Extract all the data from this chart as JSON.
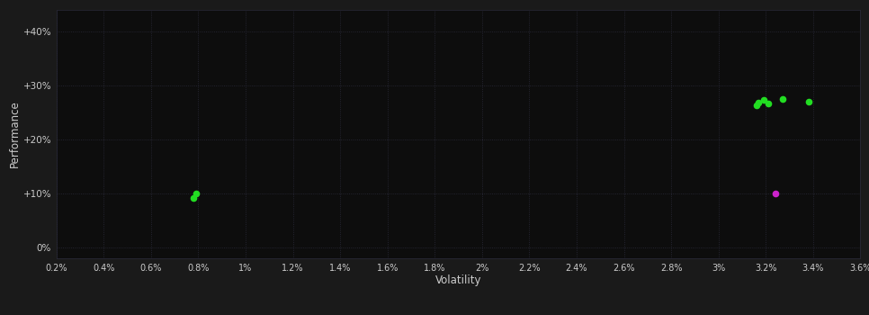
{
  "background_color": "#1a1a1a",
  "plot_bg_color": "#0d0d0d",
  "grid_color": "#2a2a3a",
  "text_color": "#cccccc",
  "xlabel": "Volatility",
  "ylabel": "Performance",
  "xlim": [
    0.002,
    0.036
  ],
  "ylim": [
    -0.02,
    0.44
  ],
  "xticks": [
    0.002,
    0.004,
    0.006,
    0.008,
    0.01,
    0.012,
    0.014,
    0.016,
    0.018,
    0.02,
    0.022,
    0.024,
    0.026,
    0.028,
    0.03,
    0.032,
    0.034,
    0.036
  ],
  "yticks": [
    0.0,
    0.1,
    0.2,
    0.3,
    0.4
  ],
  "xtick_labels": [
    "0.2%",
    "0.4%",
    "0.6%",
    "0.8%",
    "1%",
    "1.2%",
    "1.4%",
    "1.6%",
    "1.8%",
    "2%",
    "2.2%",
    "2.4%",
    "2.6%",
    "2.8%",
    "3%",
    "3.2%",
    "3.4%",
    "3.6%"
  ],
  "ytick_labels": [
    "0%",
    "+10%",
    "+20%",
    "+30%",
    "+40%"
  ],
  "green_points": [
    [
      0.0079,
      0.1
    ],
    [
      0.0078,
      0.092
    ],
    [
      0.0316,
      0.263
    ],
    [
      0.0317,
      0.268
    ],
    [
      0.0319,
      0.272
    ],
    [
      0.0321,
      0.266
    ],
    [
      0.0327,
      0.274
    ],
    [
      0.0338,
      0.27
    ]
  ],
  "magenta_points": [
    [
      0.0324,
      0.1
    ]
  ],
  "green_color": "#22dd22",
  "magenta_color": "#cc22cc",
  "marker_size": 5.5
}
